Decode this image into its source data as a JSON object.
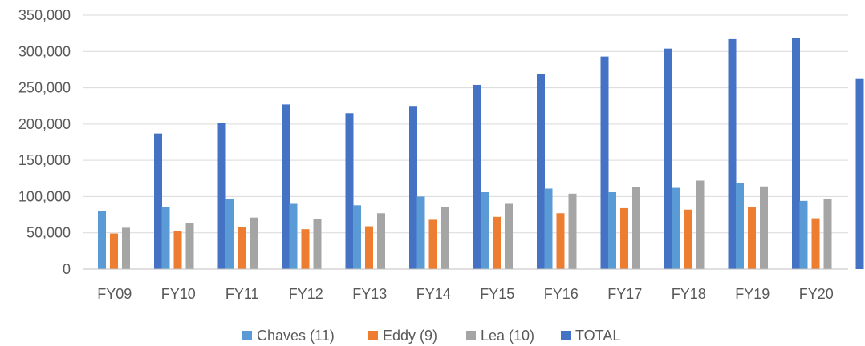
{
  "chart_data": {
    "type": "bar",
    "title": "",
    "xlabel": "",
    "ylabel": "",
    "categories": [
      "FY09",
      "FY10",
      "FY11",
      "FY12",
      "FY13",
      "FY14",
      "FY15",
      "FY16",
      "FY17",
      "FY18",
      "FY19",
      "FY20"
    ],
    "series": [
      {
        "name": "Chaves (11)",
        "color": "#5b9bd5",
        "values": [
          80000,
          86000,
          97000,
          90000,
          88000,
          100000,
          106000,
          111000,
          106000,
          112000,
          119000,
          94000
        ]
      },
      {
        "name": "Eddy (9)",
        "color": "#ed7d31",
        "values": [
          49000,
          52000,
          58000,
          55000,
          59000,
          68000,
          72000,
          77000,
          84000,
          82000,
          85000,
          70000
        ]
      },
      {
        "name": "Lea (10)",
        "color": "#a5a5a5",
        "values": [
          57000,
          63000,
          71000,
          69000,
          77000,
          86000,
          90000,
          104000,
          113000,
          122000,
          114000,
          97000
        ]
      },
      {
        "name": "TOTAL",
        "color": "#4472c4",
        "values": [
          187000,
          202000,
          227000,
          215000,
          225000,
          254000,
          269000,
          293000,
          304000,
          317000,
          319000,
          262000
        ]
      }
    ],
    "ylim": [
      0,
      350000
    ],
    "yticks": [
      0,
      50000,
      100000,
      150000,
      200000,
      250000,
      300000,
      350000
    ],
    "ytick_labels": [
      "0",
      "50,000",
      "100,000",
      "150,000",
      "200,000",
      "250,000",
      "300,000",
      "350,000"
    ],
    "grid": true,
    "legend_position": "bottom"
  }
}
